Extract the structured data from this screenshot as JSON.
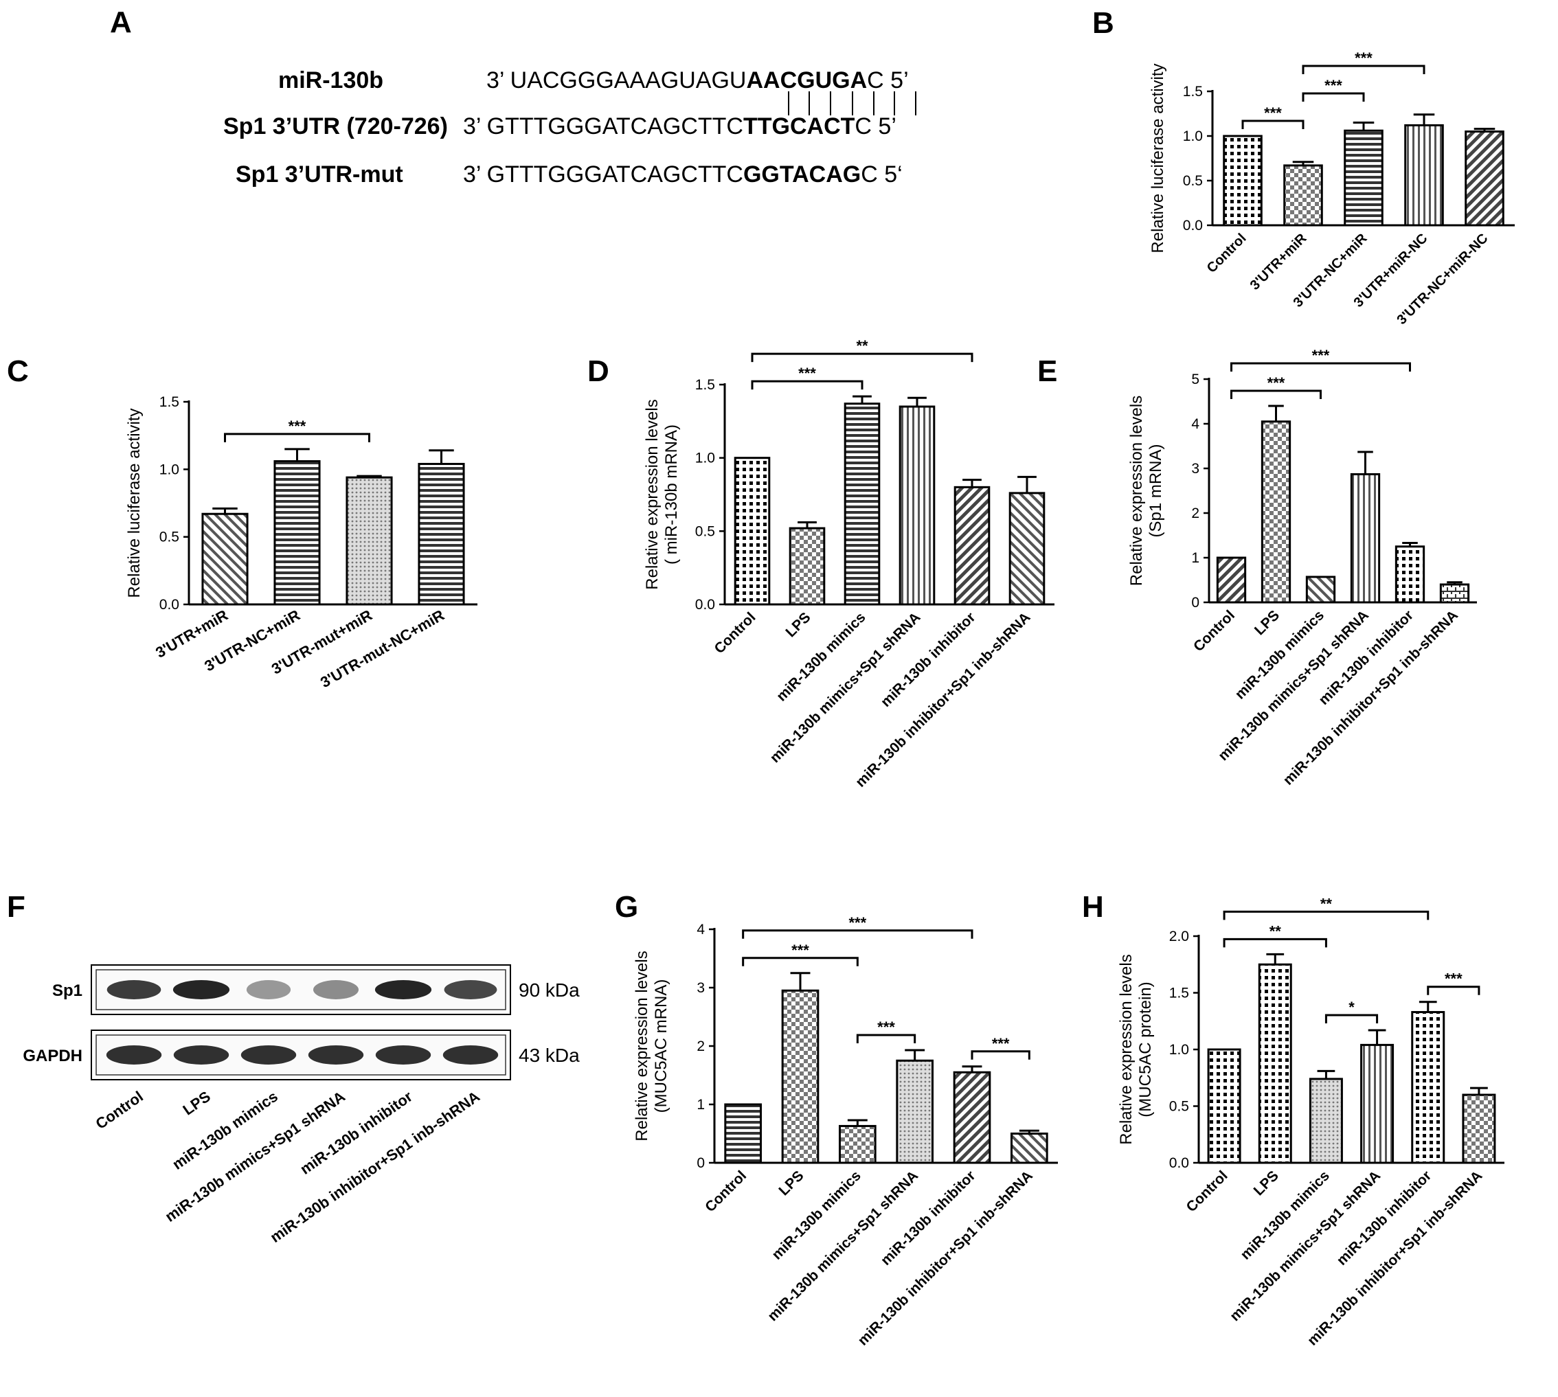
{
  "panel_a": {
    "letter": "A",
    "rows": [
      {
        "name": "miR-130b",
        "prefix": "3’ UACGGGAAAGUAGU",
        "bold": "AACGUGA",
        "suffix": "C 5’"
      },
      {
        "name": "Sp1 3’UTR (720-726)",
        "prefix": "3’ GTTTGGGATCAGCTTC",
        "bold": "TTGCACT",
        "suffix": "C 5’"
      },
      {
        "name": "Sp1 3’UTR-mut",
        "prefix": "3’ GTTTGGGATCAGCTTC",
        "bold": "GGTACAG",
        "suffix": "C 5‘"
      }
    ]
  },
  "panel_f": {
    "letter": "F",
    "bands": [
      {
        "label": "Sp1",
        "size": "90 kDa",
        "intensity": [
          0.85,
          0.95,
          0.45,
          0.5,
          0.95,
          0.8
        ]
      },
      {
        "label": "GAPDH",
        "size": "43 kDa",
        "intensity": [
          0.9,
          0.9,
          0.9,
          0.9,
          0.9,
          0.9
        ]
      }
    ],
    "lanes": [
      "Control",
      "LPS",
      "miR-130b mimics",
      "miR-130b mimics+Sp1 shRNA",
      "miR-130b inhibitor",
      "miR-130b inhibitor+Sp1 inb-shRNA"
    ]
  },
  "chart_data": [
    {
      "panel": "B",
      "type": "bar",
      "categories": [
        "Control",
        "3'UTR+miR",
        "3'UTR-NC+miR",
        "3'UTR+miR-NC",
        "3'UTR-NC+miR-NC"
      ],
      "values": [
        1.0,
        0.67,
        1.06,
        1.12,
        1.05
      ],
      "errors": [
        0.0,
        0.04,
        0.09,
        0.12,
        0.03
      ],
      "patterns": [
        "grid",
        "check",
        "hlines",
        "vlines",
        "diag"
      ],
      "ylabel": "Relative luciferase activity",
      "ylim": [
        0,
        1.5
      ],
      "yticks": [
        "0.0",
        "0.5",
        "1.0",
        "1.5"
      ],
      "significance": [
        {
          "from": 0,
          "to": 1,
          "label": "***"
        },
        {
          "from": 1,
          "to": 2,
          "label": "***"
        },
        {
          "from": 1,
          "to": 3,
          "label": "***"
        }
      ]
    },
    {
      "panel": "C",
      "type": "bar",
      "categories": [
        "3'UTR+miR",
        "3'UTR-NC+miR",
        "3'UTR-mut+miR",
        "3'UTR-mut-NC+miR"
      ],
      "values": [
        0.67,
        1.06,
        0.94,
        1.04
      ],
      "errors": [
        0.04,
        0.09,
        0.01,
        0.1
      ],
      "patterns": [
        "diagrev",
        "hlines",
        "dots",
        "hlines"
      ],
      "ylabel": "Relative luciferase activity",
      "ylim": [
        0,
        1.5
      ],
      "yticks": [
        "0.0",
        "0.5",
        "1.0",
        "1.5"
      ],
      "significance": [
        {
          "from": 0,
          "to": 2,
          "label": "***"
        }
      ]
    },
    {
      "panel": "D",
      "type": "bar",
      "categories": [
        "Control",
        "LPS",
        "miR-130b mimics",
        "miR-130b mimics+Sp1 shRNA",
        "miR-130b inhibitor",
        "miR-130b inhibitor+Sp1 inb-shRNA"
      ],
      "values": [
        1.0,
        0.52,
        1.37,
        1.35,
        0.8,
        0.76
      ],
      "errors": [
        0.0,
        0.04,
        0.05,
        0.06,
        0.05,
        0.11
      ],
      "patterns": [
        "grid",
        "check",
        "hlines",
        "vlines",
        "diag",
        "diagrev"
      ],
      "ylabel": "Relative expression levels\n( miR-130b mRNA)",
      "ylim": [
        0,
        1.5
      ],
      "yticks": [
        "0.0",
        "0.5",
        "1.0",
        "1.5"
      ],
      "significance": [
        {
          "from": 0,
          "to": 2,
          "label": "***"
        },
        {
          "from": 0,
          "to": 4,
          "label": "**"
        }
      ]
    },
    {
      "panel": "E",
      "type": "bar",
      "categories": [
        "Control",
        "LPS",
        "miR-130b mimics",
        "miR-130b mimics+Sp1 shRNA",
        "miR-130b inhibitor",
        "miR-130b inhibitor+Sp1 inb-shRNA"
      ],
      "values": [
        1.0,
        4.05,
        0.57,
        2.87,
        1.25,
        0.4
      ],
      "errors": [
        0.0,
        0.35,
        0.0,
        0.5,
        0.08,
        0.05
      ],
      "patterns": [
        "diag",
        "check",
        "diagrev",
        "vlines",
        "grid",
        "bricks"
      ],
      "ylabel": "Relative expression levels\n(Sp1 mRNA)",
      "ylim": [
        0,
        5
      ],
      "yticks": [
        "0",
        "1",
        "2",
        "3",
        "4",
        "5"
      ],
      "significance": [
        {
          "from": 0,
          "to": 2,
          "label": "***"
        },
        {
          "from": 0,
          "to": 4,
          "label": "***"
        }
      ]
    },
    {
      "panel": "G",
      "type": "bar",
      "categories": [
        "Control",
        "LPS",
        "miR-130b mimics",
        "miR-130b mimics+Sp1 shRNA",
        "miR-130b inhibitor",
        "miR-130b inhibitor+Sp1 inb-shRNA"
      ],
      "values": [
        1.0,
        2.95,
        0.63,
        1.75,
        1.55,
        0.5
      ],
      "errors": [
        0.0,
        0.3,
        0.1,
        0.18,
        0.1,
        0.05
      ],
      "patterns": [
        "hlines",
        "check",
        "check",
        "dots",
        "diag",
        "diagrev"
      ],
      "ylabel": "Relative expression levels\n(MUC5AC mRNA)",
      "ylim": [
        0,
        4
      ],
      "yticks": [
        "0",
        "1",
        "2",
        "3",
        "4"
      ],
      "significance": [
        {
          "from": 0,
          "to": 2,
          "label": "***"
        },
        {
          "from": 0,
          "to": 4,
          "label": "***"
        },
        {
          "from": 2,
          "to": 3,
          "label": "***"
        },
        {
          "from": 4,
          "to": 5,
          "label": "***"
        }
      ]
    },
    {
      "panel": "H",
      "type": "bar",
      "categories": [
        "Control",
        "LPS",
        "miR-130b mimics",
        "miR-130b mimics+Sp1 shRNA",
        "miR-130b inhibitor",
        "miR-130b inhibitor+Sp1 inb-shRNA"
      ],
      "values": [
        1.0,
        1.75,
        0.74,
        1.04,
        1.33,
        0.6
      ],
      "errors": [
        0.0,
        0.09,
        0.07,
        0.13,
        0.09,
        0.06
      ],
      "patterns": [
        "grid",
        "grid",
        "dots",
        "vlines",
        "grid",
        "check"
      ],
      "ylabel": "Relative expression levels\n(MUC5AC protein)",
      "ylim": [
        0,
        2.0
      ],
      "yticks": [
        "0.0",
        "0.5",
        "1.0",
        "1.5",
        "2.0"
      ],
      "significance": [
        {
          "from": 0,
          "to": 2,
          "label": "**"
        },
        {
          "from": 0,
          "to": 4,
          "label": "**"
        },
        {
          "from": 2,
          "to": 3,
          "label": "*"
        },
        {
          "from": 4,
          "to": 5,
          "label": "***"
        }
      ]
    }
  ]
}
